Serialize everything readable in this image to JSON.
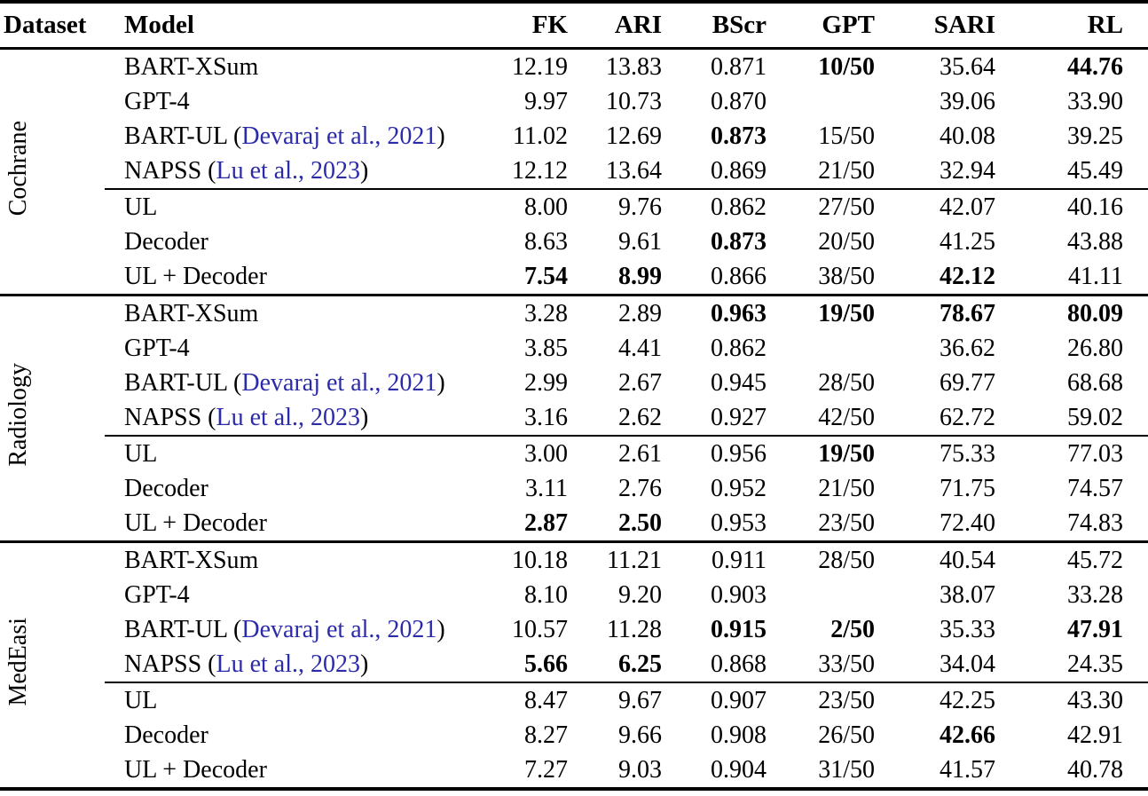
{
  "colors": {
    "text": "#000000",
    "background": "#ffffff",
    "citation_link": "#2b2baa",
    "rule": "#000000"
  },
  "table": {
    "columns": [
      {
        "key": "dataset",
        "label": "Dataset",
        "arrow": "",
        "align": "left"
      },
      {
        "key": "model",
        "label": "Model",
        "arrow": "",
        "align": "left"
      },
      {
        "key": "fk",
        "label": "FK",
        "arrow": "↓",
        "align": "right"
      },
      {
        "key": "ari",
        "label": "ARI",
        "arrow": "↓",
        "align": "right"
      },
      {
        "key": "bscr",
        "label": "BScr",
        "arrow": "↑",
        "align": "right"
      },
      {
        "key": "gpt",
        "label": "GPT",
        "arrow": "↓",
        "align": "right"
      },
      {
        "key": "sari",
        "label": "SARI",
        "arrow": "↑",
        "align": "right"
      },
      {
        "key": "rl",
        "label": "RL",
        "arrow": "↑",
        "align": "right"
      }
    ],
    "sections": [
      {
        "dataset": "Cochrane",
        "groups": [
          {
            "rows": [
              {
                "model": "BART-XSum",
                "cite": null,
                "cells": [
                  {
                    "v": "12.19",
                    "b": false
                  },
                  {
                    "v": "13.83",
                    "b": false
                  },
                  {
                    "v": "0.871",
                    "b": false
                  },
                  {
                    "v": "10/50",
                    "b": true
                  },
                  {
                    "v": "35.64",
                    "b": false
                  },
                  {
                    "v": "44.76",
                    "b": true
                  }
                ]
              },
              {
                "model": "GPT-4",
                "cite": null,
                "cells": [
                  {
                    "v": "9.97",
                    "b": false
                  },
                  {
                    "v": "10.73",
                    "b": false
                  },
                  {
                    "v": "0.870",
                    "b": false
                  },
                  {
                    "v": "",
                    "b": false
                  },
                  {
                    "v": "39.06",
                    "b": false
                  },
                  {
                    "v": "33.90",
                    "b": false
                  }
                ]
              },
              {
                "model": "BART-UL",
                "cite": "Devaraj et al., 2021",
                "cells": [
                  {
                    "v": "11.02",
                    "b": false
                  },
                  {
                    "v": "12.69",
                    "b": false
                  },
                  {
                    "v": "0.873",
                    "b": true
                  },
                  {
                    "v": "15/50",
                    "b": false
                  },
                  {
                    "v": "40.08",
                    "b": false
                  },
                  {
                    "v": "39.25",
                    "b": false
                  }
                ]
              },
              {
                "model": "NAPSS",
                "cite": "Lu et al., 2023",
                "cells": [
                  {
                    "v": "12.12",
                    "b": false
                  },
                  {
                    "v": "13.64",
                    "b": false
                  },
                  {
                    "v": "0.869",
                    "b": false
                  },
                  {
                    "v": "21/50",
                    "b": false
                  },
                  {
                    "v": "32.94",
                    "b": false
                  },
                  {
                    "v": "45.49",
                    "b": false
                  }
                ]
              }
            ]
          },
          {
            "rows": [
              {
                "model": "UL",
                "cite": null,
                "cells": [
                  {
                    "v": "8.00",
                    "b": false
                  },
                  {
                    "v": "9.76",
                    "b": false
                  },
                  {
                    "v": "0.862",
                    "b": false
                  },
                  {
                    "v": "27/50",
                    "b": false
                  },
                  {
                    "v": "42.07",
                    "b": false
                  },
                  {
                    "v": "40.16",
                    "b": false
                  }
                ]
              },
              {
                "model": "Decoder",
                "cite": null,
                "cells": [
                  {
                    "v": "8.63",
                    "b": false
                  },
                  {
                    "v": "9.61",
                    "b": false
                  },
                  {
                    "v": "0.873",
                    "b": true
                  },
                  {
                    "v": "20/50",
                    "b": false
                  },
                  {
                    "v": "41.25",
                    "b": false
                  },
                  {
                    "v": "43.88",
                    "b": false
                  }
                ]
              },
              {
                "model": "UL + Decoder",
                "cite": null,
                "cells": [
                  {
                    "v": "7.54",
                    "b": true
                  },
                  {
                    "v": "8.99",
                    "b": true
                  },
                  {
                    "v": "0.866",
                    "b": false
                  },
                  {
                    "v": "38/50",
                    "b": false
                  },
                  {
                    "v": "42.12",
                    "b": true
                  },
                  {
                    "v": "41.11",
                    "b": false
                  }
                ]
              }
            ]
          }
        ]
      },
      {
        "dataset": "Radiology",
        "groups": [
          {
            "rows": [
              {
                "model": "BART-XSum",
                "cite": null,
                "cells": [
                  {
                    "v": "3.28",
                    "b": false
                  },
                  {
                    "v": "2.89",
                    "b": false
                  },
                  {
                    "v": "0.963",
                    "b": true
                  },
                  {
                    "v": "19/50",
                    "b": true
                  },
                  {
                    "v": "78.67",
                    "b": true
                  },
                  {
                    "v": "80.09",
                    "b": true
                  }
                ]
              },
              {
                "model": "GPT-4",
                "cite": null,
                "cells": [
                  {
                    "v": "3.85",
                    "b": false
                  },
                  {
                    "v": "4.41",
                    "b": false
                  },
                  {
                    "v": "0.862",
                    "b": false
                  },
                  {
                    "v": "",
                    "b": false
                  },
                  {
                    "v": "36.62",
                    "b": false
                  },
                  {
                    "v": "26.80",
                    "b": false
                  }
                ]
              },
              {
                "model": "BART-UL",
                "cite": "Devaraj et al., 2021",
                "cells": [
                  {
                    "v": "2.99",
                    "b": false
                  },
                  {
                    "v": "2.67",
                    "b": false
                  },
                  {
                    "v": "0.945",
                    "b": false
                  },
                  {
                    "v": "28/50",
                    "b": false
                  },
                  {
                    "v": "69.77",
                    "b": false
                  },
                  {
                    "v": "68.68",
                    "b": false
                  }
                ]
              },
              {
                "model": "NAPSS",
                "cite": "Lu et al., 2023",
                "cells": [
                  {
                    "v": "3.16",
                    "b": false
                  },
                  {
                    "v": "2.62",
                    "b": false
                  },
                  {
                    "v": "0.927",
                    "b": false
                  },
                  {
                    "v": "42/50",
                    "b": false
                  },
                  {
                    "v": "62.72",
                    "b": false
                  },
                  {
                    "v": "59.02",
                    "b": false
                  }
                ]
              }
            ]
          },
          {
            "rows": [
              {
                "model": "UL",
                "cite": null,
                "cells": [
                  {
                    "v": "3.00",
                    "b": false
                  },
                  {
                    "v": "2.61",
                    "b": false
                  },
                  {
                    "v": "0.956",
                    "b": false
                  },
                  {
                    "v": "19/50",
                    "b": true
                  },
                  {
                    "v": "75.33",
                    "b": false
                  },
                  {
                    "v": "77.03",
                    "b": false
                  }
                ]
              },
              {
                "model": "Decoder",
                "cite": null,
                "cells": [
                  {
                    "v": "3.11",
                    "b": false
                  },
                  {
                    "v": "2.76",
                    "b": false
                  },
                  {
                    "v": "0.952",
                    "b": false
                  },
                  {
                    "v": "21/50",
                    "b": false
                  },
                  {
                    "v": "71.75",
                    "b": false
                  },
                  {
                    "v": "74.57",
                    "b": false
                  }
                ]
              },
              {
                "model": "UL + Decoder",
                "cite": null,
                "cells": [
                  {
                    "v": "2.87",
                    "b": true
                  },
                  {
                    "v": "2.50",
                    "b": true
                  },
                  {
                    "v": "0.953",
                    "b": false
                  },
                  {
                    "v": "23/50",
                    "b": false
                  },
                  {
                    "v": "72.40",
                    "b": false
                  },
                  {
                    "v": "74.83",
                    "b": false
                  }
                ]
              }
            ]
          }
        ]
      },
      {
        "dataset": "MedEasi",
        "groups": [
          {
            "rows": [
              {
                "model": "BART-XSum",
                "cite": null,
                "cells": [
                  {
                    "v": "10.18",
                    "b": false
                  },
                  {
                    "v": "11.21",
                    "b": false
                  },
                  {
                    "v": "0.911",
                    "b": false
                  },
                  {
                    "v": "28/50",
                    "b": false
                  },
                  {
                    "v": "40.54",
                    "b": false
                  },
                  {
                    "v": "45.72",
                    "b": false
                  }
                ]
              },
              {
                "model": "GPT-4",
                "cite": null,
                "cells": [
                  {
                    "v": "8.10",
                    "b": false
                  },
                  {
                    "v": "9.20",
                    "b": false
                  },
                  {
                    "v": "0.903",
                    "b": false
                  },
                  {
                    "v": "",
                    "b": false
                  },
                  {
                    "v": "38.07",
                    "b": false
                  },
                  {
                    "v": "33.28",
                    "b": false
                  }
                ]
              },
              {
                "model": "BART-UL",
                "cite": "Devaraj et al., 2021",
                "cells": [
                  {
                    "v": "10.57",
                    "b": false
                  },
                  {
                    "v": "11.28",
                    "b": false
                  },
                  {
                    "v": "0.915",
                    "b": true
                  },
                  {
                    "v": "2/50",
                    "b": true
                  },
                  {
                    "v": "35.33",
                    "b": false
                  },
                  {
                    "v": "47.91",
                    "b": true
                  }
                ]
              },
              {
                "model": "NAPSS",
                "cite": "Lu et al., 2023",
                "cells": [
                  {
                    "v": "5.66",
                    "b": true
                  },
                  {
                    "v": "6.25",
                    "b": true
                  },
                  {
                    "v": "0.868",
                    "b": false
                  },
                  {
                    "v": "33/50",
                    "b": false
                  },
                  {
                    "v": "34.04",
                    "b": false
                  },
                  {
                    "v": "24.35",
                    "b": false
                  }
                ]
              }
            ]
          },
          {
            "rows": [
              {
                "model": "UL",
                "cite": null,
                "cells": [
                  {
                    "v": "8.47",
                    "b": false
                  },
                  {
                    "v": "9.67",
                    "b": false
                  },
                  {
                    "v": "0.907",
                    "b": false
                  },
                  {
                    "v": "23/50",
                    "b": false
                  },
                  {
                    "v": "42.25",
                    "b": false
                  },
                  {
                    "v": "43.30",
                    "b": false
                  }
                ]
              },
              {
                "model": "Decoder",
                "cite": null,
                "cells": [
                  {
                    "v": "8.27",
                    "b": false
                  },
                  {
                    "v": "9.66",
                    "b": false
                  },
                  {
                    "v": "0.908",
                    "b": false
                  },
                  {
                    "v": "26/50",
                    "b": false
                  },
                  {
                    "v": "42.66",
                    "b": true
                  },
                  {
                    "v": "42.91",
                    "b": false
                  }
                ]
              },
              {
                "model": "UL + Decoder",
                "cite": null,
                "cells": [
                  {
                    "v": "7.27",
                    "b": false
                  },
                  {
                    "v": "9.03",
                    "b": false
                  },
                  {
                    "v": "0.904",
                    "b": false
                  },
                  {
                    "v": "31/50",
                    "b": false
                  },
                  {
                    "v": "41.57",
                    "b": false
                  },
                  {
                    "v": "40.78",
                    "b": false
                  }
                ]
              }
            ]
          }
        ]
      }
    ]
  }
}
